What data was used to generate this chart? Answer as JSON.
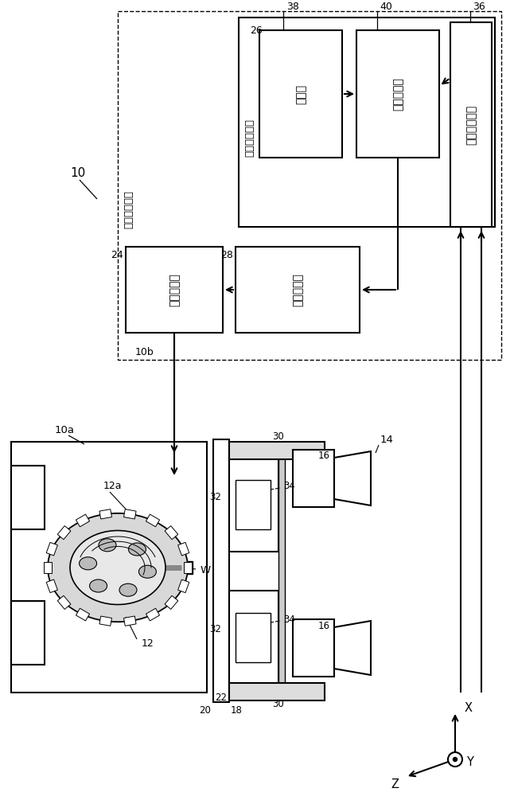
{
  "bg_color": "#ffffff",
  "lc": "#000000",
  "lw": 1.5,
  "dlw": 1.0,
  "fig_w": 6.46,
  "fig_h": 10.0,
  "labels": {
    "10": "10",
    "10a": "10a",
    "10b": "10b",
    "12": "12",
    "12a": "12a",
    "14": "14",
    "16": "16",
    "18": "18",
    "20": "20",
    "22": "22",
    "24": "24",
    "26": "26",
    "28": "28",
    "30": "30",
    "32": "32",
    "34": "34",
    "36": "36",
    "38": "38",
    "40": "40",
    "box26": "参数设定装置",
    "box10b": "数値控制装置",
    "box38": "存储部",
    "box40": "参数设定部",
    "box36": "应变量获取部",
    "box24": "驱动控制部",
    "box28": "参数保持部",
    "W": "W",
    "X": "X",
    "Y": "Y",
    "Z": "Z"
  }
}
